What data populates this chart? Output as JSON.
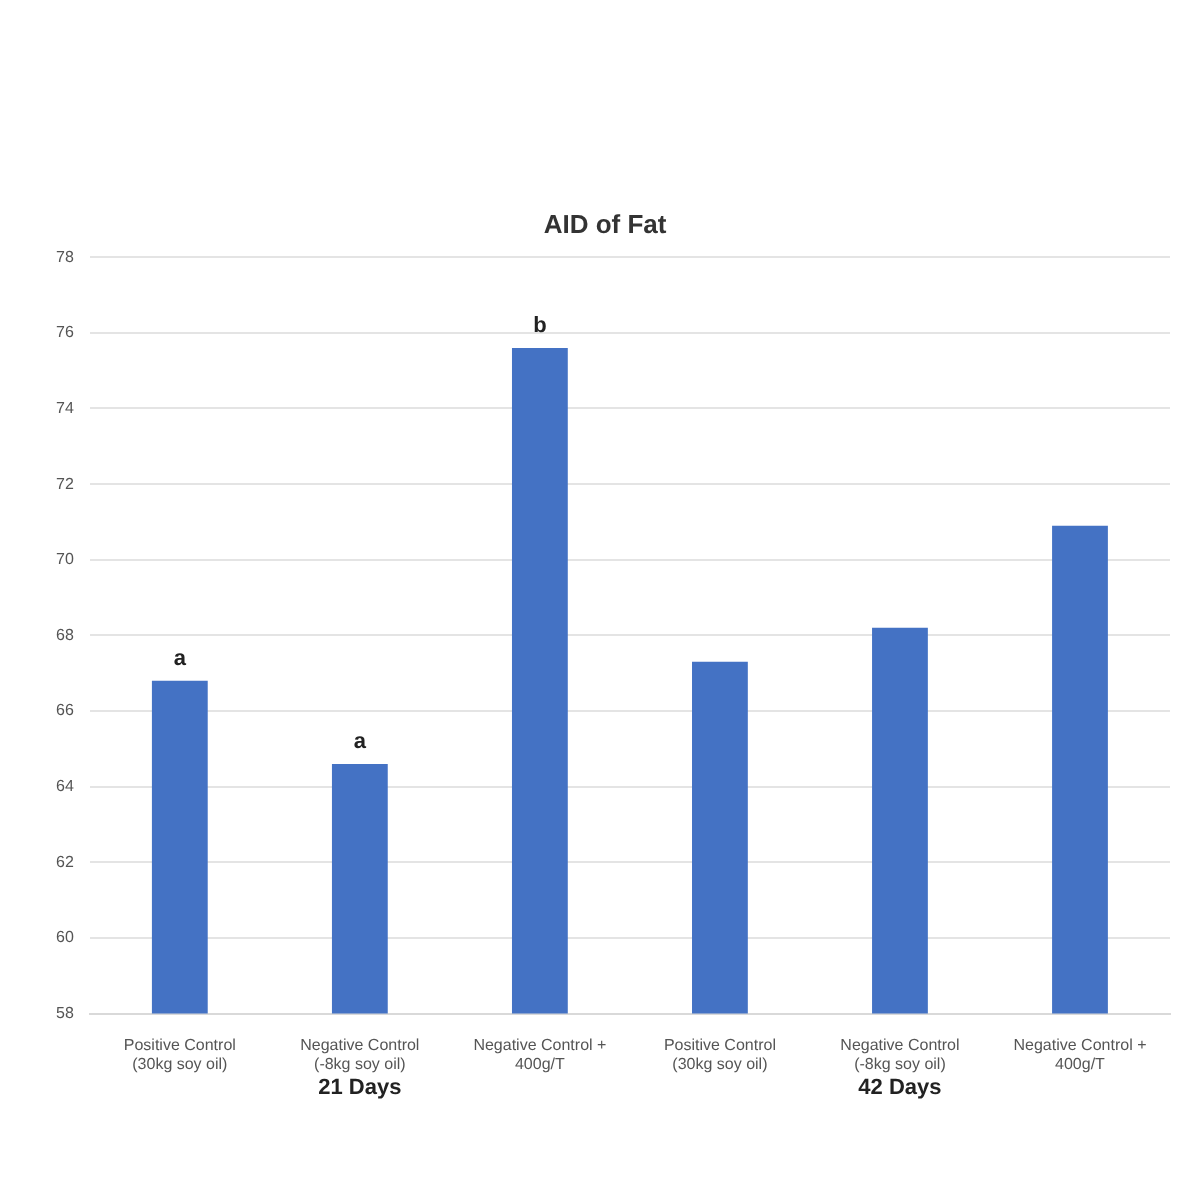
{
  "chart_data": {
    "type": "bar",
    "title": "AID of Fat",
    "categories": [
      "Positive Control (30kg soy oil)",
      "Negative Control (-8kg soy oil)",
      "Negative Control + 400g/T",
      "Positive Control (30kg soy oil)",
      "Negative Control (-8kg soy oil)",
      "Negative Control + 400g/T"
    ],
    "values": [
      66.8,
      64.6,
      75.6,
      67.3,
      68.2,
      70.9
    ],
    "color": "#4472c4",
    "ylim": [
      58,
      78
    ],
    "yticks": [
      58,
      60,
      62,
      64,
      66,
      68,
      70,
      72,
      74,
      76,
      78
    ],
    "grid": "y",
    "annotations": [
      {
        "text": "a",
        "x": "Positive Control (30kg soy oil)",
        "y": 66.8
      },
      {
        "text": "a",
        "x": "Negative Control (-8kg soy oil)",
        "y": 64.6
      },
      {
        "text": "b",
        "x": "Negative Control + 400g/T",
        "y": 75.6
      },
      "21 Days",
      "42 Days"
    ]
  }
}
